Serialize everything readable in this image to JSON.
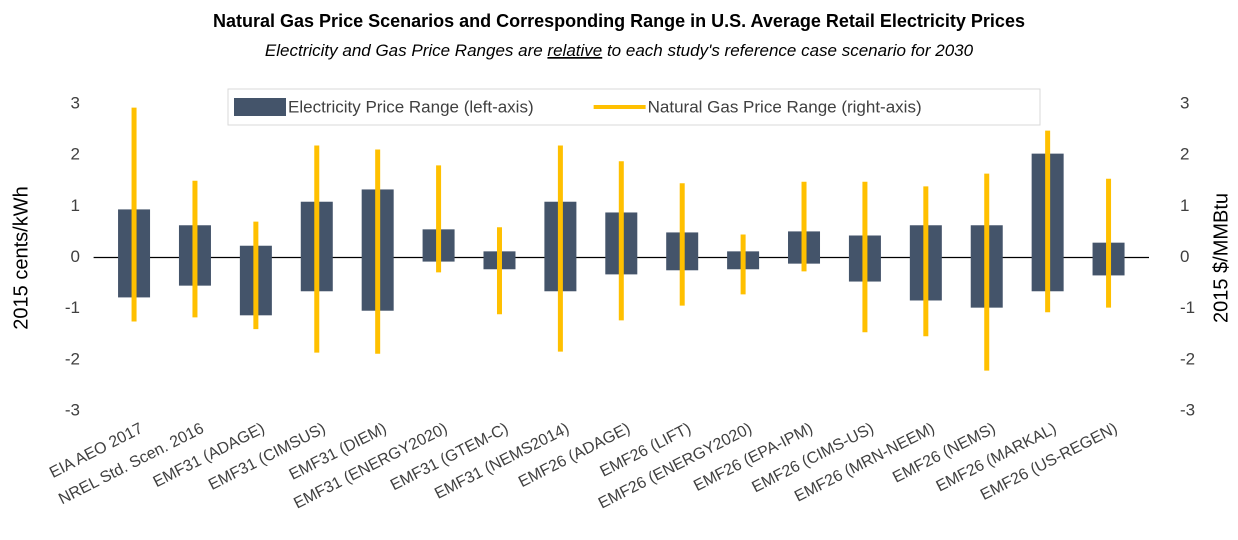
{
  "chart_data": {
    "type": "range-bar",
    "title": "Natural Gas Price Scenarios and Corresponding Range in U.S. Average Retail Electricity Prices",
    "subtitle": [
      "Electricity  and Gas Price Ranges are ",
      "relative",
      " to each study's reference case scenario for 2030"
    ],
    "categories": [
      "EIA AEO 2017",
      "NREL Std. Scen. 2016",
      "EMF31 (ADAGE)",
      "EMF31 (CIMSUS)",
      "EMF31 (DIEM)",
      "EMF31 (ENERGY2020)",
      "EMF31 (GTEM-C)",
      "EMF31 (NEMS2014)",
      "EMF26 (ADAGE)",
      "EMF26 (LIFT)",
      "EMF26 (ENERGY2020)",
      "EMF26 (EPA-IPM)",
      "EMF26 (CIMS-US)",
      "EMF26 (MRN-NEEM)",
      "EMF26 (NEMS)",
      "EMF26 (MARKAL)",
      "EMF26 (US-REGEN)"
    ],
    "series": [
      {
        "name": "Electricity Price Range (left-axis)",
        "color": "#44546a",
        "axis": "y",
        "mark": "bar",
        "low": [
          -0.78,
          -0.55,
          -1.13,
          -0.66,
          -1.04,
          -0.08,
          -0.23,
          -0.66,
          -0.33,
          -0.25,
          -0.23,
          -0.12,
          -0.47,
          -0.84,
          -0.98,
          -0.66,
          -0.35
        ],
        "high": [
          0.94,
          0.63,
          0.23,
          1.09,
          1.33,
          0.55,
          0.12,
          1.09,
          0.88,
          0.49,
          0.12,
          0.51,
          0.43,
          0.63,
          0.63,
          2.03,
          0.29
        ]
      },
      {
        "name": "Natural Gas Price Range (right-axis)",
        "color": "#ffc000",
        "axis": "y2",
        "mark": "line",
        "low": [
          -1.25,
          -1.17,
          -1.4,
          -1.86,
          -1.88,
          -0.29,
          -1.11,
          -1.84,
          -1.23,
          -0.94,
          -0.72,
          -0.27,
          -1.46,
          -1.54,
          -2.21,
          -1.07,
          -0.98
        ],
        "high": [
          2.93,
          1.5,
          0.7,
          2.19,
          2.11,
          1.8,
          0.59,
          2.19,
          1.88,
          1.45,
          0.45,
          1.48,
          1.48,
          1.39,
          1.64,
          2.48,
          1.54
        ]
      }
    ],
    "ylabel": "2015 cents/kWh",
    "y2label": "2015 $/MMBtu",
    "ylim": [
      -3,
      3
    ],
    "yticks": [
      -3,
      -2,
      -1,
      0,
      1,
      2,
      3
    ],
    "y2lim": [
      -3,
      3
    ],
    "y2ticks": [
      -3,
      -2,
      -1,
      0,
      1,
      2,
      3
    ],
    "grid": false,
    "legend": "top"
  }
}
